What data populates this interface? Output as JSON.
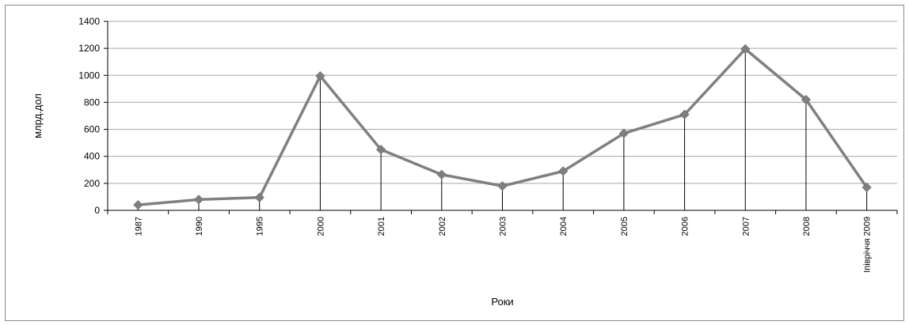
{
  "chart_data": {
    "type": "line",
    "title": "",
    "xlabel": "Роки",
    "ylabel": "млрд.дол",
    "categories": [
      "1987",
      "1990",
      "1995",
      "2000",
      "2001",
      "2002",
      "2003",
      "2004",
      "2005",
      "2006",
      "2007",
      "2008",
      "Iпівріччя 2009"
    ],
    "series": [
      {
        "values": [
          40,
          80,
          95,
          995,
          450,
          265,
          180,
          290,
          570,
          710,
          1195,
          820,
          170
        ]
      }
    ],
    "ylim": [
      0,
      1400
    ],
    "yticks": [
      0,
      200,
      400,
      600,
      800,
      1000,
      1200,
      1400
    ],
    "grid": true,
    "legend": "none",
    "line_color": "#808080",
    "marker_color": "#808080",
    "drop_line_color": "#000000",
    "gridline_color": "#a6a6a6"
  }
}
